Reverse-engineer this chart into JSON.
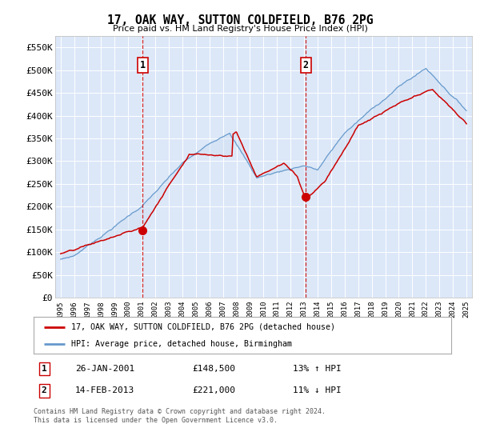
{
  "title": "17, OAK WAY, SUTTON COLDFIELD, B76 2PG",
  "subtitle": "Price paid vs. HM Land Registry's House Price Index (HPI)",
  "plot_bg_color": "#dce8f8",
  "ylim": [
    0,
    575000
  ],
  "yticks": [
    0,
    50000,
    100000,
    150000,
    200000,
    250000,
    300000,
    350000,
    400000,
    450000,
    500000,
    550000
  ],
  "ytick_labels": [
    "£0",
    "£50K",
    "£100K",
    "£150K",
    "£200K",
    "£250K",
    "£300K",
    "£350K",
    "£400K",
    "£450K",
    "£500K",
    "£550K"
  ],
  "sale1_date_num": 2001.07,
  "sale1_price": 148500,
  "sale1_label": "1",
  "sale1_date_str": "26-JAN-2001",
  "sale1_hpi_pct": "13% ↑ HPI",
  "sale2_date_num": 2013.12,
  "sale2_price": 221000,
  "sale2_label": "2",
  "sale2_date_str": "14-FEB-2013",
  "sale2_hpi_pct": "11% ↓ HPI",
  "legend_line1": "17, OAK WAY, SUTTON COLDFIELD, B76 2PG (detached house)",
  "legend_line2": "HPI: Average price, detached house, Birmingham",
  "footer1": "Contains HM Land Registry data © Crown copyright and database right 2024.",
  "footer2": "This data is licensed under the Open Government Licence v3.0.",
  "red_color": "#cc0000",
  "blue_color": "#6699cc",
  "blue_fill": "#c8daf0"
}
